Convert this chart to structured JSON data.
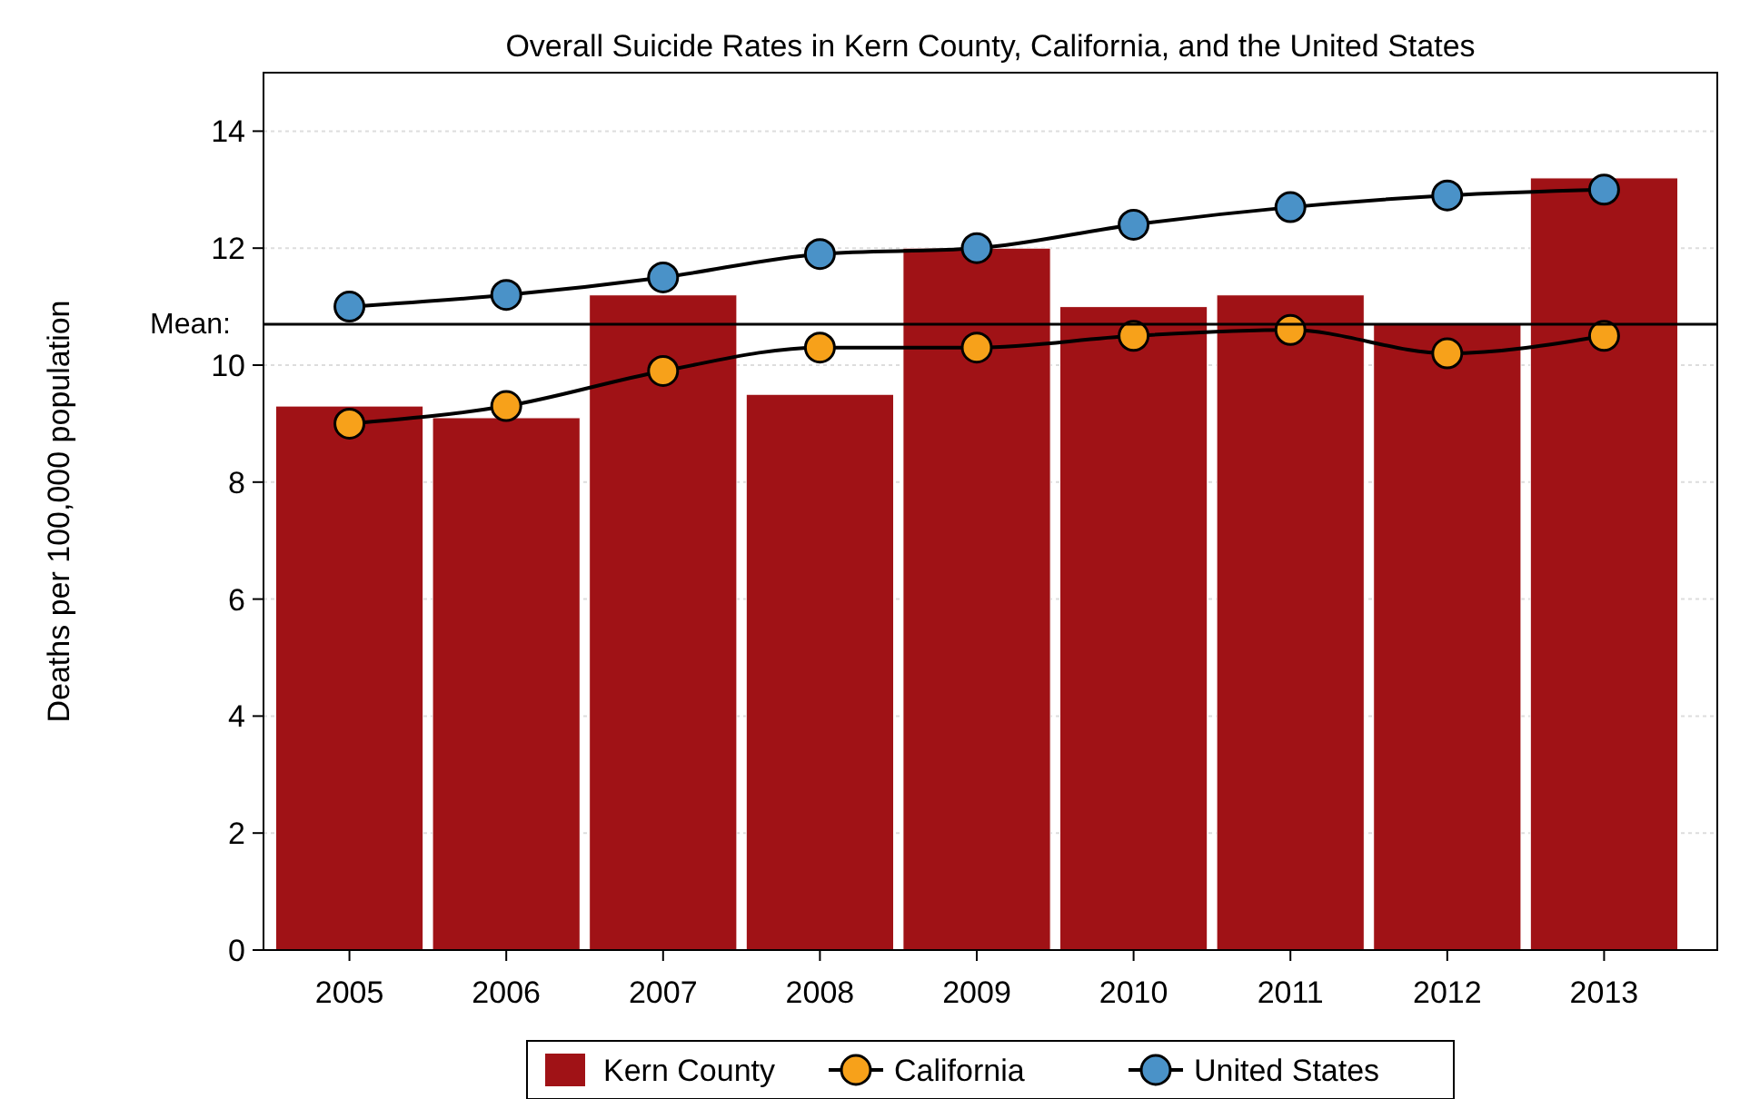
{
  "chart_data": {
    "type": "bar",
    "title": "Overall Suicide Rates in Kern County, California, and the United States",
    "ylabel": "Deaths per 100,000 population",
    "categories": [
      "2005",
      "2006",
      "2007",
      "2008",
      "2009",
      "2010",
      "2011",
      "2012",
      "2013"
    ],
    "series": [
      {
        "name": "Kern County",
        "color": "#a01216",
        "values": [
          9.3,
          9.1,
          11.2,
          9.5,
          12.0,
          11.0,
          11.2,
          10.7,
          13.2
        ]
      },
      {
        "name": "California",
        "type": "line",
        "color": "#f7a11a",
        "values": [
          9.0,
          9.3,
          9.9,
          10.3,
          10.3,
          10.5,
          10.6,
          10.2,
          10.5
        ]
      },
      {
        "name": "United States",
        "type": "line",
        "color": "#4a92c8",
        "values": [
          11.0,
          11.2,
          11.5,
          11.9,
          12.0,
          12.4,
          12.7,
          12.9,
          13.0
        ]
      }
    ],
    "ylim": [
      0,
      15
    ],
    "yticks": [
      0,
      2,
      4,
      6,
      8,
      10,
      12,
      14
    ],
    "grid": "y",
    "legend": "bottom",
    "marker": "circle",
    "line_style": "solid",
    "ref_lines": [
      {
        "axis": "y",
        "value": 10.7,
        "label": "Mean:",
        "color": "#000000"
      }
    ]
  }
}
